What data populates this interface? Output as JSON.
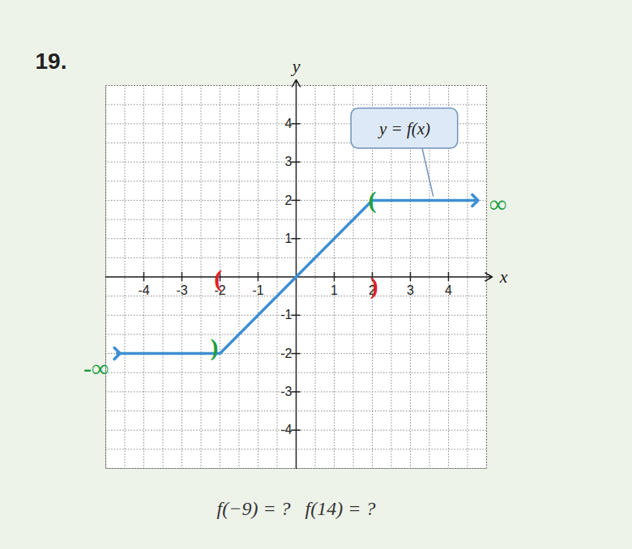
{
  "chart_data": {
    "type": "line",
    "title": "19.",
    "xlabel": "x",
    "ylabel": "y",
    "x": [
      -4.7,
      -2,
      2,
      4.7
    ],
    "series": [
      {
        "name": "y = f(x)",
        "color": "#3f8fd2",
        "values": [
          -2,
          -2,
          2,
          2
        ],
        "marker": "arrow"
      }
    ],
    "xlim": [
      -5,
      5
    ],
    "ylim": [
      -5,
      5
    ],
    "xticks": [
      -4,
      -3,
      -2,
      -1,
      1,
      2,
      3,
      4
    ],
    "yticks": [
      -4,
      -3,
      -2,
      -1,
      1,
      2,
      3,
      4
    ],
    "grid": true,
    "caption": "f(−9) = ?   f(14) = ?",
    "annotations": [
      {
        "text": "(",
        "x": -2.05,
        "y": -0.05,
        "color": "#e02025"
      },
      {
        "text": ")",
        "x": 2.05,
        "y": -0.25,
        "color": "#e02025"
      },
      {
        "text": "(",
        "x": 2.0,
        "y": 2.0,
        "color": "#1fa045"
      },
      {
        "text": ")",
        "x": -2.15,
        "y": -1.85,
        "color": "#1fa045"
      },
      {
        "text": "∞",
        "x": 5.3,
        "y": 1.9,
        "color": "#1fa045"
      },
      {
        "text": "-∞",
        "x": -5.25,
        "y": -2.4,
        "color": "#1fa045"
      }
    ]
  }
}
